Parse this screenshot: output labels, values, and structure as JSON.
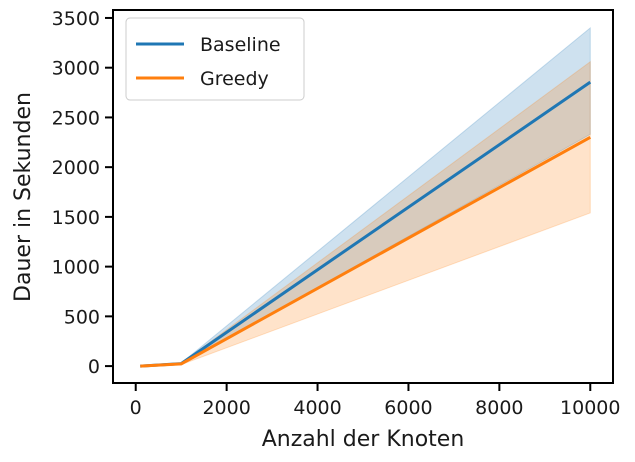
{
  "chart_data": {
    "type": "line",
    "title": "",
    "xlabel": "Anzahl der Knoten",
    "ylabel": "Dauer in Sekunden",
    "xlim": [
      -500,
      10500
    ],
    "ylim": [
      -170,
      3580
    ],
    "xticks": [
      0,
      2000,
      4000,
      6000,
      8000,
      10000
    ],
    "yticks": [
      0,
      500,
      1000,
      1500,
      2000,
      2500,
      3000,
      3500
    ],
    "grid": false,
    "legend": "top-left",
    "series": [
      {
        "name": "Baseline",
        "color": "#1f77b4",
        "x": [
          100,
          1000,
          10000
        ],
        "y": [
          0,
          25,
          2855
        ],
        "band_lower": [
          0,
          20,
          2330
        ],
        "band_upper": [
          0,
          30,
          3400
        ]
      },
      {
        "name": "Greedy",
        "color": "#ff7f0e",
        "x": [
          100,
          1000,
          10000
        ],
        "y": [
          0,
          22,
          2300
        ],
        "band_lower": [
          0,
          15,
          1540
        ],
        "band_upper": [
          0,
          28,
          3060
        ]
      }
    ]
  }
}
